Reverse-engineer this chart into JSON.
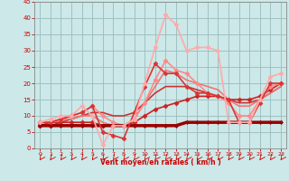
{
  "bg_color": "#cce8e8",
  "grid_color": "#99bbbb",
  "xlabel": "Vent moyen/en rafales ( km/h )",
  "xlabel_color": "#cc0000",
  "tick_color": "#cc0000",
  "xlim": [
    -0.5,
    23.5
  ],
  "ylim": [
    0,
    45
  ],
  "yticks": [
    0,
    5,
    10,
    15,
    20,
    25,
    30,
    35,
    40,
    45
  ],
  "xticks": [
    0,
    1,
    2,
    3,
    4,
    5,
    6,
    7,
    8,
    9,
    10,
    11,
    12,
    13,
    14,
    15,
    16,
    17,
    18,
    19,
    20,
    21,
    22,
    23
  ],
  "series": [
    {
      "x": [
        0,
        1,
        2,
        3,
        4,
        5,
        6,
        7,
        8,
        9,
        10,
        11,
        12,
        13,
        14,
        15,
        16,
        17,
        18,
        19,
        20,
        21,
        22,
        23
      ],
      "y": [
        7,
        7,
        7,
        7,
        7,
        7,
        7,
        7,
        7,
        7,
        7,
        7,
        7,
        7,
        8,
        8,
        8,
        8,
        8,
        8,
        8,
        8,
        8,
        8
      ],
      "color": "#990000",
      "lw": 2.5,
      "marker": "D",
      "markersize": 2,
      "zorder": 5
    },
    {
      "x": [
        0,
        1,
        2,
        3,
        4,
        5,
        6,
        7,
        8,
        9,
        10,
        11,
        12,
        13,
        14,
        15,
        16,
        17,
        18,
        19,
        20,
        21,
        22,
        23
      ],
      "y": [
        7,
        7,
        8,
        8,
        8,
        8,
        7,
        7,
        7,
        8,
        10,
        12,
        13,
        14,
        15,
        16,
        16,
        16,
        15,
        15,
        15,
        16,
        18,
        20
      ],
      "color": "#cc2222",
      "lw": 1.2,
      "marker": "D",
      "markersize": 2.5,
      "zorder": 4
    },
    {
      "x": [
        0,
        1,
        2,
        3,
        4,
        5,
        6,
        7,
        8,
        9,
        10,
        11,
        12,
        13,
        14,
        15,
        16,
        17,
        18,
        19,
        20,
        21,
        22,
        23
      ],
      "y": [
        7,
        8,
        8,
        9,
        10,
        11,
        11,
        10,
        10,
        11,
        14,
        17,
        19,
        19,
        19,
        18,
        17,
        16,
        15,
        14,
        14,
        15,
        17,
        19
      ],
      "color": "#cc3333",
      "lw": 1.2,
      "marker": null,
      "zorder": 2
    },
    {
      "x": [
        0,
        1,
        2,
        3,
        4,
        5,
        6,
        7,
        8,
        9,
        10,
        11,
        12,
        13,
        14,
        15,
        16,
        17,
        18,
        19,
        20,
        21,
        22,
        23
      ],
      "y": [
        8,
        8,
        9,
        10,
        11,
        13,
        5,
        4,
        3,
        11,
        19,
        26,
        23,
        23,
        19,
        17,
        17,
        16,
        15,
        8,
        8,
        14,
        20,
        20
      ],
      "color": "#dd3333",
      "lw": 1.2,
      "marker": "D",
      "markersize": 2.5,
      "zorder": 5
    },
    {
      "x": [
        0,
        1,
        2,
        3,
        4,
        5,
        6,
        7,
        8,
        9,
        10,
        11,
        12,
        13,
        14,
        15,
        16,
        17,
        18,
        19,
        20,
        21,
        22,
        23
      ],
      "y": [
        8,
        9,
        10,
        10,
        13,
        10,
        1,
        7,
        7,
        9,
        20,
        31,
        41,
        38,
        30,
        31,
        31,
        30,
        8,
        8,
        8,
        15,
        22,
        23
      ],
      "color": "#ffaaaa",
      "lw": 1.2,
      "marker": "D",
      "markersize": 2.5,
      "zorder": 5
    },
    {
      "x": [
        0,
        1,
        2,
        3,
        4,
        5,
        6,
        7,
        8,
        9,
        10,
        11,
        12,
        13,
        14,
        15,
        16,
        17,
        18,
        19,
        20,
        21,
        22,
        23
      ],
      "y": [
        8,
        8,
        9,
        9,
        10,
        10,
        8,
        7,
        7,
        9,
        14,
        19,
        24,
        23,
        21,
        20,
        19,
        18,
        15,
        13,
        13,
        15,
        17,
        19
      ],
      "color": "#ee7777",
      "lw": 1.2,
      "marker": null,
      "zorder": 2
    },
    {
      "x": [
        0,
        1,
        2,
        3,
        4,
        5,
        6,
        7,
        8,
        9,
        10,
        11,
        12,
        13,
        14,
        15,
        16,
        17,
        18,
        19,
        20,
        21,
        22,
        23
      ],
      "y": [
        8,
        8,
        9,
        10,
        11,
        13,
        10,
        8,
        7,
        9,
        14,
        21,
        27,
        24,
        23,
        20,
        17,
        16,
        14,
        10,
        10,
        15,
        19,
        20
      ],
      "color": "#ff8888",
      "lw": 1.2,
      "marker": "D",
      "markersize": 2.5,
      "zorder": 4
    }
  ],
  "arrow_color": "#cc0000",
  "spine_color": "#888888"
}
